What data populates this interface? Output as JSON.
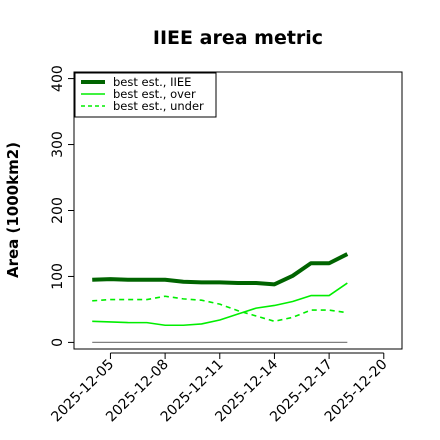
{
  "chart_data": {
    "type": "line",
    "title": "IIEE area metric",
    "xlabel": "",
    "ylabel": "Area (1000km2)",
    "x": [
      "2025-12-04",
      "2025-12-05",
      "2025-12-06",
      "2025-12-07",
      "2025-12-08",
      "2025-12-09",
      "2025-12-10",
      "2025-12-11",
      "2025-12-12",
      "2025-12-13",
      "2025-12-14",
      "2025-12-15",
      "2025-12-16",
      "2025-12-17",
      "2025-12-18"
    ],
    "x_ticks": [
      "2025-12-05",
      "2025-12-08",
      "2025-12-11",
      "2025-12-14",
      "2025-12-17",
      "2025-12-20"
    ],
    "xlim": [
      "2025-12-03",
      "2025-12-21"
    ],
    "ylim": [
      -10,
      410
    ],
    "y_ticks": [
      0,
      100,
      200,
      300,
      400
    ],
    "grid": false,
    "legend_position": "top-left",
    "series": [
      {
        "name": "best est., IIEE",
        "color": "#006400",
        "style": "solid-thick",
        "values": [
          95,
          96,
          95,
          95,
          95,
          92,
          91,
          91,
          90,
          90,
          88,
          101,
          120,
          120,
          134
        ]
      },
      {
        "name": "best est., over",
        "color": "#00ee00",
        "style": "solid",
        "values": [
          32,
          31,
          30,
          30,
          26,
          26,
          28,
          34,
          43,
          52,
          56,
          62,
          71,
          71,
          90
        ]
      },
      {
        "name": "best est., under",
        "color": "#00ee00",
        "style": "dashed",
        "values": [
          63,
          65,
          65,
          65,
          70,
          66,
          64,
          58,
          48,
          40,
          32,
          38,
          49,
          49,
          45
        ]
      },
      {
        "values": [
          0,
          0,
          0,
          0,
          0,
          0,
          0,
          0,
          0,
          0,
          0,
          0,
          0,
          0,
          0
        ],
        "color": "#808080",
        "style": "solid-thin"
      }
    ]
  }
}
